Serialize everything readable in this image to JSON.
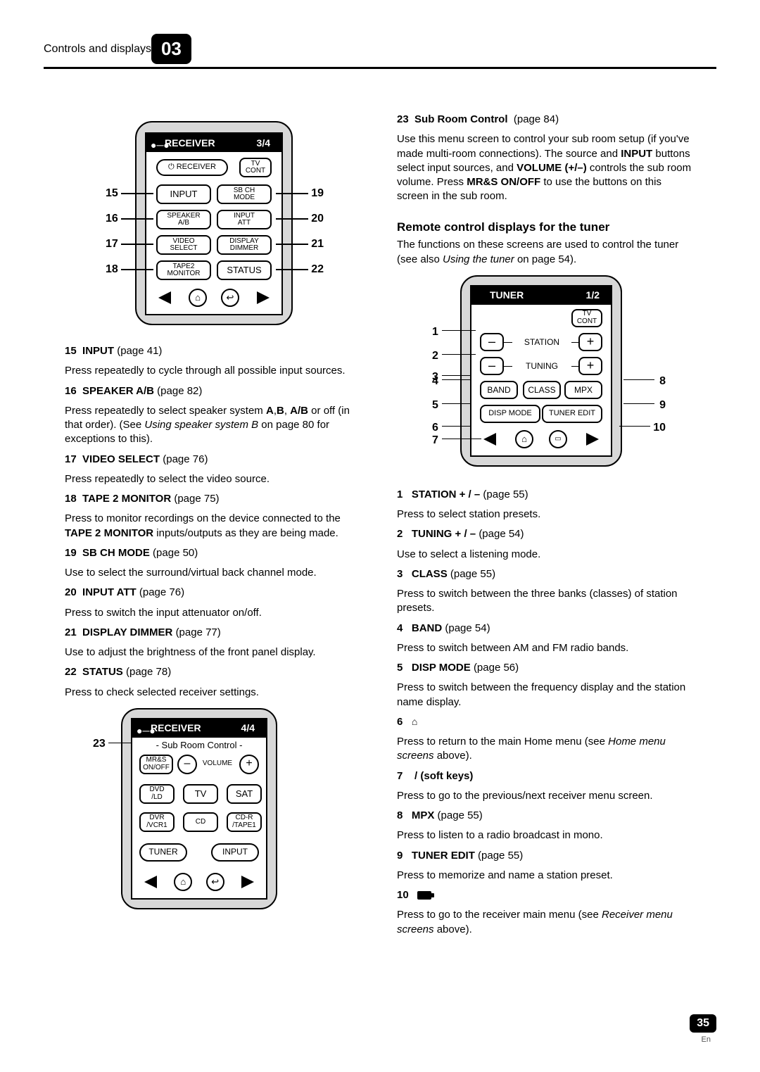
{
  "header": {
    "title": "Controls and displays",
    "chapter": "03"
  },
  "diagramA": {
    "screenTitle": "RECEIVER",
    "screenPage": "3/4",
    "receiverBtn": "RECEIVER",
    "tvCont": "TV\nCONT",
    "rows": [
      {
        "numL": "15",
        "left": "INPUT",
        "right": "SB CH\nMODE",
        "numR": "19",
        "leftBig": true
      },
      {
        "numL": "16",
        "left": "SPEAKER\nA/B",
        "right": "INPUT\nATT",
        "numR": "20"
      },
      {
        "numL": "17",
        "left": "VIDEO\nSELECT",
        "right": "DISPLAY\nDIMMER",
        "numR": "21"
      },
      {
        "numL": "18",
        "left": "TAPE2\nMONITOR",
        "right": "STATUS",
        "numR": "22",
        "rightBig": true
      }
    ]
  },
  "leftItems": [
    {
      "n": "15",
      "name": "INPUT",
      "page": "(page 41)",
      "body": "Press repeatedly to cycle through all possible input sources."
    },
    {
      "n": "16",
      "name": "SPEAKER A/B",
      "page": "(page 82)",
      "body": "Press repeatedly to select speaker system <b>A</b>,<b>B</b>, <b>A/B</b> or off (in that order). (See <i>Using speaker system B</i> on page 80 for exceptions to this)."
    },
    {
      "n": "17",
      "name": "VIDEO SELECT",
      "page": "(page 76)",
      "body": "Press repeatedly to select the video source."
    },
    {
      "n": "18",
      "name": "TAPE 2 MONITOR",
      "page": "(page 75)",
      "body": "Press to monitor recordings on the device connected to the <b>TAPE 2 MONITOR</b> inputs/outputs as they are being made."
    },
    {
      "n": "19",
      "name": "SB CH MODE",
      "page": "(page 50)",
      "body": "Use to select the surround/virtual back channel mode."
    },
    {
      "n": "20",
      "name": "INPUT ATT",
      "page": "(page 76)",
      "body": "Press to switch the input attenuator on/off."
    },
    {
      "n": "21",
      "name": "DISPLAY DIMMER",
      "page": "(page 77)",
      "body": "Use to adjust the brightness of the front panel display."
    },
    {
      "n": "22",
      "name": "STATUS",
      "page": "(page 78)",
      "body": "Press to check selected receiver settings."
    }
  ],
  "diagramB": {
    "screenTitle": "RECEIVER",
    "screenPage": "4/4",
    "subtitle": "- Sub  Room  Control -",
    "calloutNum": "23",
    "mrs": "MR&S\nON/OFF",
    "volume": "VOLUME",
    "row2": [
      "DVD\n/LD",
      "TV",
      "SAT"
    ],
    "row3": [
      "DVR\n/VCR1",
      "CD",
      "CD-R\n/TAPE1"
    ],
    "row4L": "TUNER",
    "row4R": "INPUT"
  },
  "rightTop": {
    "n": "23",
    "name": "Sub Room Control",
    "page": "(page 84)",
    "body": "Use this menu screen to control your sub room setup (if you've made multi-room connections). The source and <b>INPUT</b> buttons select input sources, and <b>VOLUME (+/–)</b> controls the sub room volume. Press <b>MR&S ON/OFF</b> to use the buttons on this screen in the sub room."
  },
  "rightSection": {
    "title": "Remote control displays for the tuner",
    "intro": "The functions on these screens are used to control the tuner (see also <i>Using the tuner</i> on page 54)."
  },
  "diagramC": {
    "screenTitle": "TUNER",
    "screenPage": "1/2",
    "tvCont": "TV\nCONT",
    "station": "STATION",
    "tuning": "TUNING",
    "band": "BAND",
    "class": "CLASS",
    "mpx": "MPX",
    "disp": "DISP MODE",
    "edit": "TUNER EDIT",
    "calloutsL": [
      "1",
      "2",
      "3",
      "4",
      "5",
      "6",
      "7"
    ],
    "calloutsR": [
      "8",
      "9",
      "10"
    ]
  },
  "rightItems": [
    {
      "n": "1",
      "name": "STATION + / –",
      "page": " (page 55)",
      "body": "Press to select station presets."
    },
    {
      "n": "2",
      "name": "TUNING + / –",
      "page": "(page 54)",
      "body": "Use to select a listening mode."
    },
    {
      "n": "3",
      "name": "CLASS",
      "page": "(page 55)",
      "body": "Press to switch between the three banks (classes) of station presets."
    },
    {
      "n": "4",
      "name": "BAND",
      "page": "(page 54)",
      "body": "Press to switch between AM and FM radio bands."
    },
    {
      "n": "5",
      "name": "DISP MODE",
      "page": "(page 56)",
      "body": "Press to switch between the frequency display and the station name display."
    },
    {
      "n": "6",
      "name": "",
      "page": "",
      "icon": "home",
      "body": "Press to return to the main Home menu (see <i>Home menu screens</i> above)."
    },
    {
      "n": "7",
      "name": "   /    (soft keys)",
      "page": "",
      "body": "Press to go to the previous/next receiver menu screen."
    },
    {
      "n": "8",
      "name": "MPX",
      "page": "(page 55)",
      "body": "Press to listen to a radio broadcast in mono."
    },
    {
      "n": "9",
      "name": "TUNER EDIT",
      "page": "(page 55)",
      "body": "Press to memorize and name a station preset."
    },
    {
      "n": "10",
      "name": "",
      "page": "",
      "icon": "rect",
      "body": "Press to go to the receiver main menu (see <i>Receiver menu screens</i> above)."
    }
  ],
  "footer": {
    "page": "35",
    "lang": "En"
  }
}
